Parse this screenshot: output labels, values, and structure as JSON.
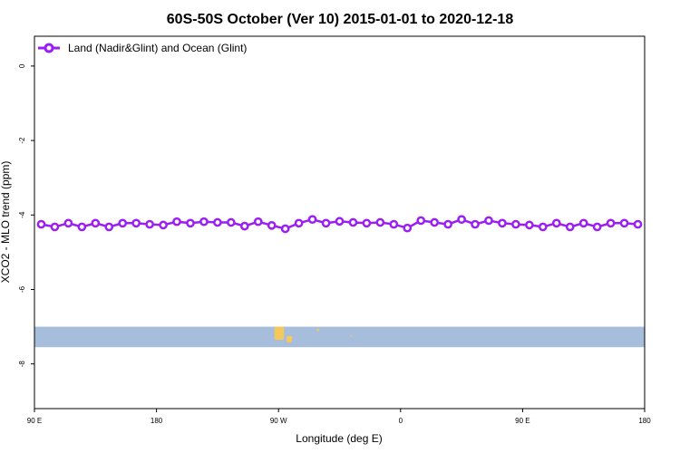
{
  "chart_data": {
    "type": "line",
    "title": "60S-50S October (Ver 10)   2015-01-01 to 2020-12-18",
    "xlabel": "Longitude (deg E)",
    "ylabel": "XCO2 - MLO trend (ppm)",
    "xlim": [
      90,
      540
    ],
    "ylim": [
      -9.2,
      0.8
    ],
    "x_ticks": [
      {
        "value": 90,
        "label": "90 E"
      },
      {
        "value": 180,
        "label": "180"
      },
      {
        "value": 270,
        "label": "90 W"
      },
      {
        "value": 360,
        "label": "0"
      },
      {
        "value": 450,
        "label": "90 E"
      },
      {
        "value": 540,
        "label": "180"
      }
    ],
    "y_ticks": [
      {
        "value": 0,
        "label": "0"
      },
      {
        "value": -2,
        "label": "-2"
      },
      {
        "value": -4,
        "label": "-4"
      },
      {
        "value": -6,
        "label": "-6"
      },
      {
        "value": -8,
        "label": "-8"
      }
    ],
    "grid": false,
    "legend_position": "top-left",
    "series": [
      {
        "name": "Land (Nadir&Glint) and Ocean (Glint)",
        "color": "#9b1ff2",
        "marker": "open-circle",
        "x": [
          95,
          105,
          115,
          125,
          135,
          145,
          155,
          165,
          175,
          185,
          195,
          205,
          215,
          225,
          235,
          245,
          255,
          265,
          275,
          285,
          295,
          305,
          315,
          325,
          335,
          345,
          355,
          365,
          375,
          385,
          395,
          405,
          415,
          425,
          435,
          445,
          455,
          465,
          475,
          485,
          495,
          505,
          515,
          525,
          535
        ],
        "values": [
          -4.25,
          -4.32,
          -4.22,
          -4.32,
          -4.22,
          -4.32,
          -4.22,
          -4.22,
          -4.25,
          -4.27,
          -4.18,
          -4.22,
          -4.18,
          -4.2,
          -4.2,
          -4.3,
          -4.18,
          -4.28,
          -4.37,
          -4.22,
          -4.12,
          -4.22,
          -4.17,
          -4.2,
          -4.22,
          -4.2,
          -4.25,
          -4.35,
          -4.15,
          -4.2,
          -4.25,
          -4.12,
          -4.25,
          -4.15,
          -4.22,
          -4.25,
          -4.27,
          -4.32,
          -4.22,
          -4.32,
          -4.22,
          -4.32,
          -4.22,
          -4.22,
          -4.25
        ]
      }
    ],
    "map_strip": {
      "y_range": [
        -7.55,
        -7.0
      ],
      "ocean_color": "#a6bddb",
      "land_color": "#f5c85a",
      "land_regions": [
        {
          "x": [
            267,
            274
          ],
          "y": [
            -7.35,
            -7.0
          ]
        },
        {
          "x": [
            276,
            280
          ],
          "y": [
            -7.42,
            -7.25
          ]
        },
        {
          "x": [
            298,
            300
          ],
          "y": [
            -7.12,
            -7.06
          ]
        },
        {
          "x": [
            323,
            324
          ],
          "y": [
            -7.27,
            -7.22
          ]
        }
      ]
    }
  }
}
